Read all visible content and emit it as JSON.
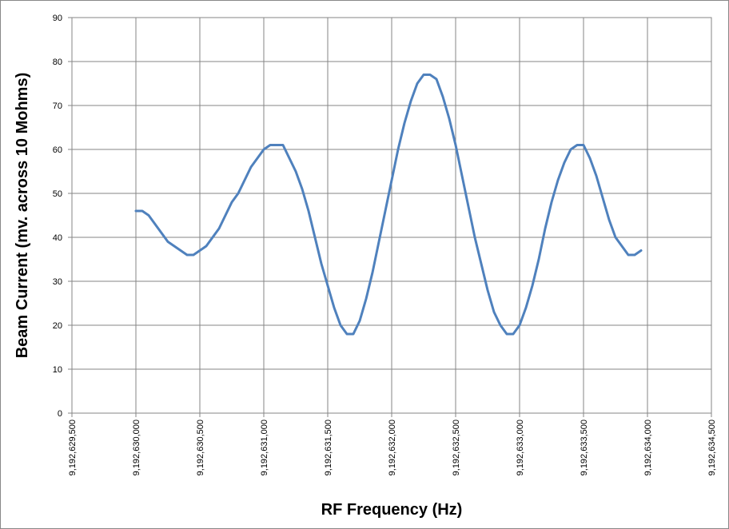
{
  "chart_data": {
    "type": "line",
    "title": "",
    "xlabel": "RF Frequency (Hz)",
    "ylabel": "Beam Current (mv. across 10 Mohms)",
    "xlim": [
      9192629500,
      9192634500
    ],
    "ylim": [
      0,
      90
    ],
    "x_ticks": [
      9192629500,
      9192630000,
      9192630500,
      9192631000,
      9192631500,
      9192632000,
      9192632500,
      9192633000,
      9192633500,
      9192634000,
      9192634500
    ],
    "x_tick_labels": [
      "9,192,629,500",
      "9,192,630,000",
      "9,192,630,500",
      "9,192,631,000",
      "9,192,631,500",
      "9,192,632,000",
      "9,192,632,500",
      "9,192,633,000",
      "9,192,633,500",
      "9,192,634,000",
      "9,192,634,500"
    ],
    "y_ticks": [
      0,
      10,
      20,
      30,
      40,
      50,
      60,
      70,
      80,
      90
    ],
    "y_tick_labels": [
      "0",
      "10",
      "20",
      "30",
      "40",
      "50",
      "60",
      "70",
      "80",
      "90"
    ],
    "grid": true,
    "legend": "none",
    "line_color": "#4f81bd",
    "series": [
      {
        "x": [
          9192630000,
          9192630050,
          9192630100,
          9192630150,
          9192630200,
          9192630250,
          9192630300,
          9192630350,
          9192630400,
          9192630450,
          9192630500,
          9192630550,
          9192630600,
          9192630650,
          9192630700,
          9192630750,
          9192630800,
          9192630850,
          9192630900,
          9192630950,
          9192631000,
          9192631050,
          9192631100,
          9192631150,
          9192631200,
          9192631250,
          9192631300,
          9192631350,
          9192631400,
          9192631450,
          9192631500,
          9192631550,
          9192631600,
          9192631650,
          9192631700,
          9192631750,
          9192631800,
          9192631850,
          9192631900,
          9192631950,
          9192632000,
          9192632050,
          9192632100,
          9192632150,
          9192632200,
          9192632250,
          9192632300,
          9192632350,
          9192632400,
          9192632450,
          9192632500,
          9192632550,
          9192632600,
          9192632650,
          9192632700,
          9192632750,
          9192632800,
          9192632850,
          9192632900,
          9192632950,
          9192633000,
          9192633050,
          9192633100,
          9192633150,
          9192633200,
          9192633250,
          9192633300,
          9192633350,
          9192633400,
          9192633450,
          9192633500,
          9192633550,
          9192633600,
          9192633650,
          9192633700,
          9192633750,
          9192633800,
          9192633850,
          9192633900,
          9192633950
        ],
        "values": [
          46,
          46,
          45,
          43,
          41,
          39,
          38,
          37,
          36,
          36,
          37,
          38,
          40,
          42,
          45,
          48,
          50,
          53,
          56,
          58,
          60,
          61,
          61,
          61,
          58,
          55,
          51,
          46,
          40,
          34,
          29,
          24,
          20,
          18,
          18,
          21,
          26,
          32,
          39,
          46,
          53,
          60,
          66,
          71,
          75,
          77,
          77,
          76,
          72,
          67,
          61,
          54,
          47,
          40,
          34,
          28,
          23,
          20,
          18,
          18,
          20,
          24,
          29,
          35,
          42,
          48,
          53,
          57,
          60,
          61,
          61,
          58,
          54,
          49,
          44,
          40,
          38,
          36,
          36,
          37
        ]
      }
    ]
  }
}
